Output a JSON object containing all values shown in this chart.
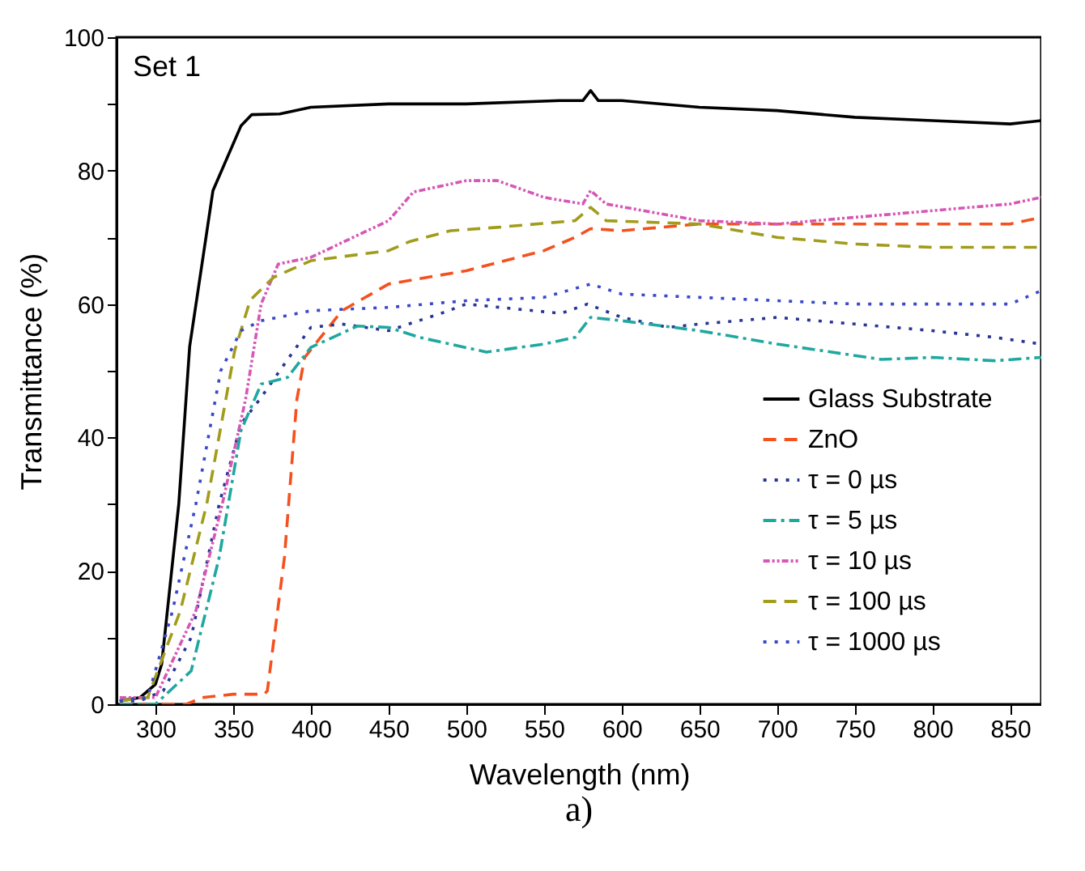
{
  "chart_data": {
    "type": "line",
    "xlabel": "Wavelength (nm)",
    "ylabel": "Transmittance (%)",
    "annotations": [
      "Set 1",
      "a)"
    ],
    "xlim": [
      275,
      870
    ],
    "ylim": [
      0,
      100
    ],
    "xticks": [
      300,
      350,
      400,
      450,
      500,
      550,
      600,
      650,
      700,
      750,
      800,
      850
    ],
    "yticks": [
      0,
      {
        "value": 10,
        "label": null
      },
      20,
      {
        "value": 30,
        "label": null
      },
      40,
      {
        "value": 50,
        "label": null
      },
      60,
      {
        "value": 70,
        "label": null
      },
      80,
      {
        "value": 90,
        "label": null
      },
      100
    ],
    "grid": false,
    "legend": "bottom right",
    "marker": "none",
    "series": [
      {
        "name": "Glass Substrate",
        "color": "#000000",
        "line_style": "solid",
        "x": [
          277,
          290,
          300,
          304,
          315,
          322,
          337,
          355,
          362,
          380,
          400,
          450,
          500,
          560,
          575,
          580,
          585,
          600,
          650,
          700,
          750,
          800,
          850,
          870
        ],
        "values": [
          0.5,
          1,
          3,
          6,
          30,
          53.6,
          77,
          86.7,
          88.4,
          88.5,
          89.5,
          90,
          90,
          90.5,
          90.5,
          92,
          90.5,
          90.5,
          89.5,
          89,
          88,
          87.5,
          87,
          87.5
        ]
      },
      {
        "name": "ZnO",
        "color": "#f4511e",
        "line_style": "dashed",
        "x": [
          277,
          300,
          320,
          330,
          350,
          370,
          372,
          383,
          391,
          396,
          420,
          450,
          500,
          550,
          570,
          580,
          600,
          650,
          700,
          750,
          800,
          850,
          870
        ],
        "values": [
          0,
          0,
          0,
          1,
          1.5,
          1.5,
          2,
          22,
          45.7,
          52,
          59,
          63,
          65,
          68,
          70,
          71.3,
          71,
          72,
          72,
          72,
          72,
          72,
          73
        ]
      },
      {
        "name": "τ = 0 µs",
        "color": "#283593",
        "line_style": "dotted",
        "x": [
          277,
          290,
          305,
          323,
          341,
          355,
          368,
          386,
          400,
          420,
          450,
          485,
          500,
          561,
          578,
          600,
          630,
          650,
          700,
          750,
          800,
          840,
          870
        ],
        "values": [
          0.5,
          0.5,
          2,
          10,
          30,
          42,
          46,
          52,
          56.5,
          57,
          56,
          58.7,
          60,
          58.6,
          60,
          58,
          56.5,
          57,
          58,
          57,
          56,
          55,
          54
        ]
      },
      {
        "name": "τ = 5 µs",
        "color": "#1fa8a0",
        "line_style": "dashdot",
        "x": [
          277,
          300,
          323,
          341,
          355,
          368,
          385,
          400,
          430,
          450,
          470,
          513,
          550,
          570,
          580,
          600,
          650,
          700,
          767,
          800,
          840,
          870
        ],
        "values": [
          0,
          0,
          5,
          22,
          41,
          48,
          49,
          53.5,
          56.7,
          56.5,
          55,
          52.8,
          54,
          55,
          58,
          57.5,
          56,
          54,
          51.7,
          52,
          51.5,
          52
        ]
      },
      {
        "name": "τ = 10 µs",
        "color": "#d657b5",
        "line_style": "dashdotdot",
        "x": [
          277,
          300,
          326,
          343,
          358,
          368,
          379,
          400,
          450,
          466,
          500,
          520,
          550,
          575,
          580,
          590,
          650,
          700,
          750,
          800,
          850,
          870
        ],
        "values": [
          1,
          1,
          14,
          30,
          45.7,
          60,
          66,
          67,
          72.5,
          76.8,
          78.5,
          78.5,
          76,
          75,
          77,
          75,
          72.5,
          72,
          73,
          74,
          75,
          76
        ]
      },
      {
        "name": "τ = 100 µs",
        "color": "#a29c1c",
        "line_style": "dashed",
        "x": [
          277,
          295,
          316,
          333,
          351,
          361,
          376,
          400,
          450,
          464,
          490,
          520,
          570,
          580,
          590,
          650,
          700,
          750,
          800,
          870
        ],
        "values": [
          0.5,
          1,
          14,
          30,
          53,
          60.6,
          64,
          66.5,
          68,
          69.4,
          71,
          71.5,
          72.5,
          74.5,
          72.5,
          72,
          70,
          69,
          68.5,
          68.5
        ]
      },
      {
        "name": "τ = 1000 µs",
        "color": "#3949c8",
        "line_style": "dotted",
        "x": [
          277,
          295,
          311,
          326,
          342,
          355,
          368,
          400,
          450,
          500,
          550,
          580,
          600,
          650,
          700,
          750,
          800,
          850,
          860,
          870
        ],
        "values": [
          0.5,
          1,
          14,
          30,
          50,
          56,
          57.5,
          59,
          59.5,
          60.5,
          61,
          63,
          61.5,
          61,
          60.5,
          60,
          60,
          60,
          61,
          62
        ]
      }
    ]
  }
}
